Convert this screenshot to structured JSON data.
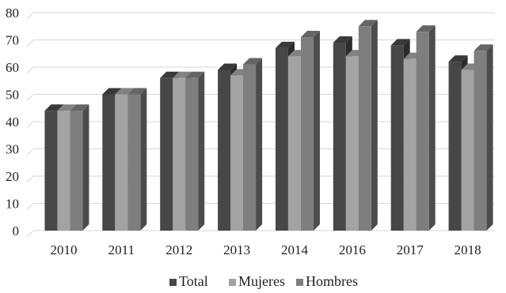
{
  "chart_data": {
    "type": "bar",
    "categories": [
      "2010",
      "2011",
      "2012",
      "2013",
      "2014",
      "2016",
      "2017",
      "2018"
    ],
    "series": [
      {
        "name": "Total",
        "values": [
          44,
          50,
          56,
          59,
          67,
          69,
          68,
          62
        ],
        "color": "#474747"
      },
      {
        "name": "Mujeres",
        "values": [
          44,
          50,
          56,
          57,
          64,
          64,
          63,
          59
        ],
        "color": "#a3a3a3"
      },
      {
        "name": "Hombres",
        "values": [
          44,
          50,
          56,
          61,
          71,
          75,
          73,
          66
        ],
        "color": "#7e7e7e"
      }
    ],
    "ylim": [
      0,
      80
    ],
    "yticks": [
      0,
      10,
      20,
      30,
      40,
      50,
      60,
      70,
      80
    ],
    "grid": true,
    "legend_position": "bottom",
    "title": "",
    "xlabel": "",
    "ylabel": ""
  }
}
